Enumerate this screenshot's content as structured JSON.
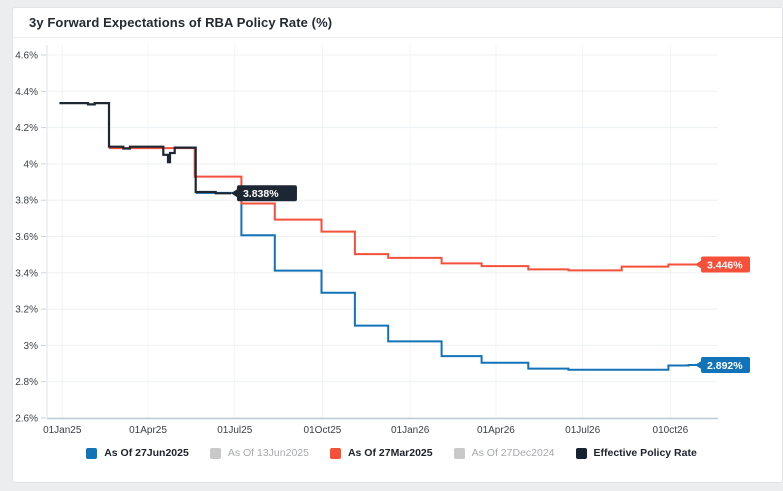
{
  "chart_data": {
    "type": "line",
    "title": "3y Forward Expectations of RBA Policy Rate (%)",
    "xlabel": "",
    "ylabel": "",
    "ylim": [
      2.6,
      4.6
    ],
    "grid": true,
    "legend_position": "bottom",
    "x_domain": [
      "2024-12-16",
      "2026-11-20"
    ],
    "y_ticks": [
      {
        "value": 4.6,
        "label": "4.6%"
      },
      {
        "value": 4.4,
        "label": "4.4%"
      },
      {
        "value": 4.2,
        "label": "4.2%"
      },
      {
        "value": 4.0,
        "label": "4%"
      },
      {
        "value": 3.8,
        "label": "3.8%"
      },
      {
        "value": 3.6,
        "label": "3.6%"
      },
      {
        "value": 3.4,
        "label": "3.4%"
      },
      {
        "value": 3.2,
        "label": "3.2%"
      },
      {
        "value": 3.0,
        "label": "3%"
      },
      {
        "value": 2.8,
        "label": "2.8%"
      },
      {
        "value": 2.6,
        "label": "2.6%"
      }
    ],
    "x_ticks": [
      {
        "date": "2025-01-01",
        "label": "01Jan25"
      },
      {
        "date": "2025-04-01",
        "label": "01Apr25"
      },
      {
        "date": "2025-07-01",
        "label": "01Jul25"
      },
      {
        "date": "2025-10-01",
        "label": "01Oct25"
      },
      {
        "date": "2026-01-01",
        "label": "01Jan26"
      },
      {
        "date": "2026-04-01",
        "label": "01Apr26"
      },
      {
        "date": "2026-07-01",
        "label": "01Jul26"
      },
      {
        "date": "2026-10-01",
        "label": "010ct26"
      }
    ],
    "series": [
      {
        "name": "As Of 27Jun2025",
        "color": "#1273b8",
        "end_date": "2026-11-20",
        "end_label": "2.892%",
        "end_value": 2.892,
        "steps": [
          [
            "2025-05-21",
            3.84
          ],
          [
            "2025-07-08",
            3.607
          ],
          [
            "2025-08-12",
            3.412
          ],
          [
            "2025-09-30",
            3.29
          ],
          [
            "2025-11-04",
            3.109
          ],
          [
            "2025-12-09",
            3.022
          ],
          [
            "2026-02-03",
            2.941
          ],
          [
            "2026-03-17",
            2.904
          ],
          [
            "2026-05-05",
            2.872
          ],
          [
            "2026-06-16",
            2.866
          ],
          [
            "2026-09-29",
            2.889
          ],
          [
            "2026-10-20",
            2.892
          ]
        ]
      },
      {
        "name": "As Of 27Mar2025",
        "color": "#f4503a",
        "end_date": "2026-11-20",
        "end_label": "3.446%",
        "end_value": 3.446,
        "steps": [
          [
            "2025-02-19",
            4.087
          ],
          [
            "2025-05-20",
            3.93
          ],
          [
            "2025-07-08",
            3.782
          ],
          [
            "2025-08-12",
            3.693
          ],
          [
            "2025-09-30",
            3.627
          ],
          [
            "2025-11-04",
            3.503
          ],
          [
            "2025-12-09",
            3.482
          ],
          [
            "2026-02-03",
            3.452
          ],
          [
            "2026-03-17",
            3.437
          ],
          [
            "2026-05-05",
            3.419
          ],
          [
            "2026-06-16",
            3.413
          ],
          [
            "2026-08-11",
            3.434
          ],
          [
            "2026-09-29",
            3.446
          ]
        ]
      },
      {
        "name": "Effective Policy Rate",
        "color": "#1d2633",
        "end_date": "2025-06-27",
        "end_label": "3.838%",
        "end_value": 3.838,
        "steps": [
          [
            "2024-12-29",
            4.335
          ],
          [
            "2025-01-28",
            4.328
          ],
          [
            "2025-02-04",
            4.335
          ],
          [
            "2025-02-19",
            4.095
          ],
          [
            "2025-03-06",
            4.085
          ],
          [
            "2025-03-13",
            4.095
          ],
          [
            "2025-04-17",
            4.05
          ],
          [
            "2025-04-22",
            4.01
          ],
          [
            "2025-04-24",
            4.06
          ],
          [
            "2025-04-29",
            4.09
          ],
          [
            "2025-05-21",
            3.845
          ],
          [
            "2025-06-11",
            3.838
          ]
        ]
      }
    ]
  },
  "legend": {
    "items": [
      {
        "label": "As Of 27Jun2025",
        "color": "#1273b8",
        "active": true
      },
      {
        "label": "As Of 13Jun2025",
        "color": "#c9c9c9",
        "active": false
      },
      {
        "label": "As Of 27Mar2025",
        "color": "#f4503a",
        "active": true
      },
      {
        "label": "As Of 27Dec2024",
        "color": "#c9c9c9",
        "active": false
      },
      {
        "label": "Effective Policy Rate",
        "color": "#172330",
        "active": true
      }
    ]
  }
}
